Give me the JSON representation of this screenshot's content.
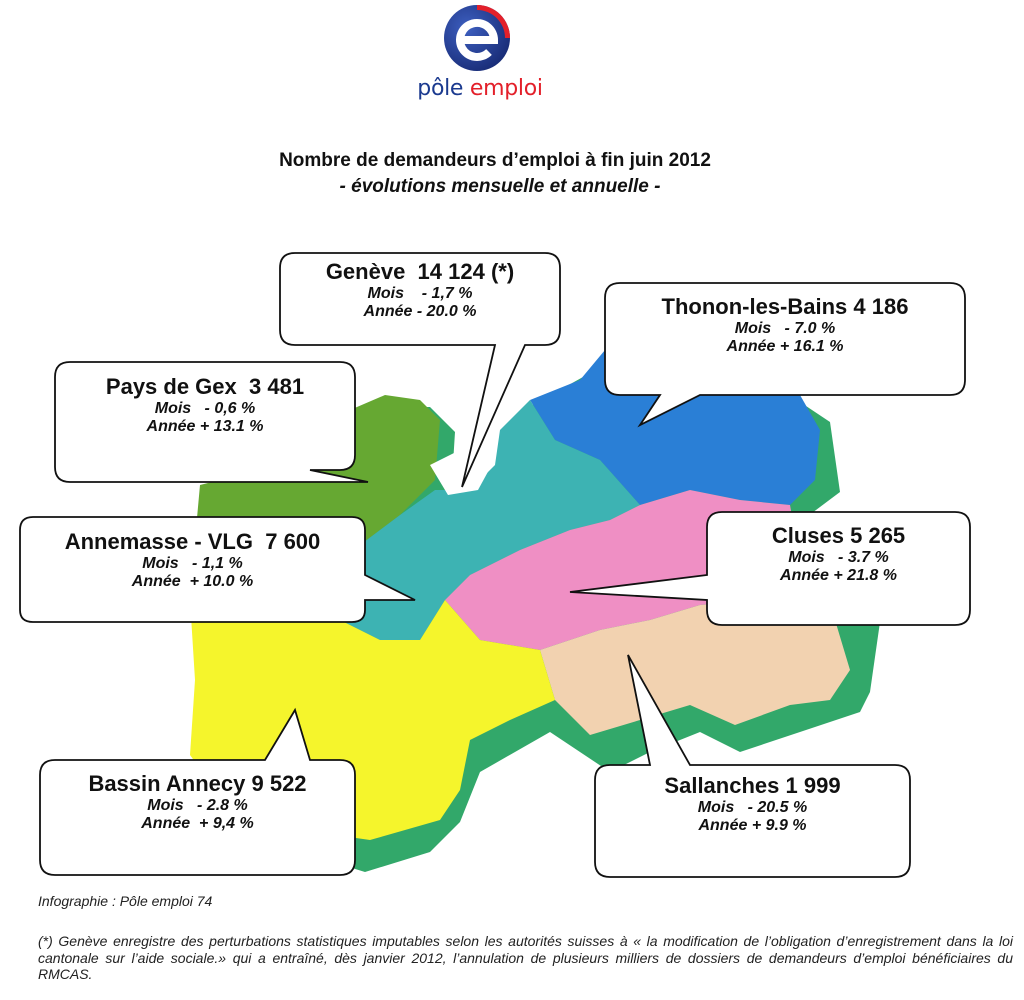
{
  "logo": {
    "word1": "pôle",
    "word2": "emploi",
    "icon": "pole-emploi-e-logo"
  },
  "title": "Nombre de demandeurs d’emploi à fin juin 2012",
  "subtitle": "- évolutions mensuelle et annuelle -",
  "colors": {
    "pays_de_gex": "#66a832",
    "geneve_annemasse": "#3db3b3",
    "thonon": "#2a7fd6",
    "cluses": "#ef8fc4",
    "sallanches": "#f2d2b0",
    "annecy": "#f5f52c",
    "shadow_green": "#32a86a",
    "shadow_purple": "#8a68b8"
  },
  "regions": [
    {
      "id": "geneve",
      "name": "Genève",
      "count": "14 124",
      "note": "(*)",
      "mois_label": "Mois",
      "mois": "- 1,7 %",
      "annee_label": "Année",
      "annee": "- 20.0 %"
    },
    {
      "id": "thonon",
      "name": "Thonon-les-Bains",
      "count": "4 186",
      "mois_label": "Mois",
      "mois": "- 7.0  %",
      "annee_label": "Année",
      "annee": "+ 16.1 %"
    },
    {
      "id": "pays-de-gex",
      "name": "Pays de Gex",
      "count": "3 481",
      "mois_label": "Mois",
      "mois": "- 0,6  %",
      "annee_label": "Année",
      "annee": "+ 13.1 %"
    },
    {
      "id": "annemasse",
      "name": "Annemasse - VLG",
      "count": "7 600",
      "mois_label": "Mois",
      "mois": "- 1,1 %",
      "annee_label": "Année",
      "annee": "+ 10.0  %"
    },
    {
      "id": "cluses",
      "name": "Cluses",
      "count": "5 265",
      "mois_label": "Mois",
      "mois": "- 3.7  %",
      "annee_label": "Année",
      "annee": "+ 21.8  %"
    },
    {
      "id": "annecy",
      "name": "Bassin Annecy",
      "count": "9 522",
      "mois_label": "Mois",
      "mois": "- 2.8 %",
      "annee_label": "Année",
      "annee": "+ 9,4 %"
    },
    {
      "id": "sallanches",
      "name": "Sallanches",
      "count": "1 999",
      "mois_label": "Mois",
      "mois": "- 20.5  %",
      "annee_label": "Année",
      "annee": "+ 9.9 %"
    }
  ],
  "credit": "Infographie : Pôle emploi 74",
  "footnote": "(*) Genève enregistre des perturbations statistiques  imputables selon les autorités suisses à « la modification de l’obligation d’enregistrement dans la loi cantonale sur l’aide sociale.» qui a entraîné, dès janvier 2012, l’annulation de plusieurs milliers de dossiers de demandeurs d’emploi bénéficiaires du RMCAS."
}
